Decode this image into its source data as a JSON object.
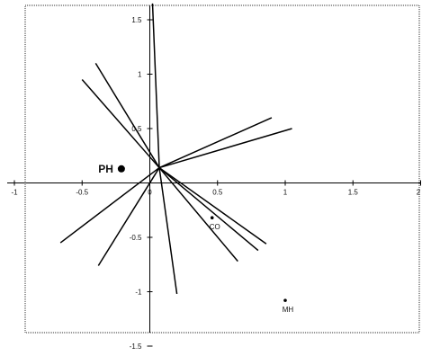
{
  "chart_data": {
    "type": "scatter",
    "title": "",
    "xlabel": "",
    "ylabel": "",
    "xlim": [
      -1,
      2
    ],
    "ylim": [
      -1.5,
      1.5
    ],
    "grid": false,
    "legend": "none",
    "colors": {
      "axis": "#000000",
      "frame": "#333333",
      "vectors": "#000000",
      "points": "#000000"
    },
    "x_ticks": [
      {
        "value": -1,
        "label": "-1"
      },
      {
        "value": -0.5,
        "label": "-0.5"
      },
      {
        "value": 0,
        "label": "0"
      },
      {
        "value": 0.5,
        "label": "0.5"
      },
      {
        "value": 1,
        "label": "1"
      },
      {
        "value": 1.5,
        "label": "1.5"
      },
      {
        "value": 2,
        "label": "2"
      }
    ],
    "y_ticks": [
      {
        "value": 1.5,
        "label": "1.5"
      },
      {
        "value": 1,
        "label": "1"
      },
      {
        "value": 0.5,
        "label": "0.5"
      },
      {
        "value": -0.5,
        "label": "-0.5"
      },
      {
        "value": -1,
        "label": "-1"
      },
      {
        "value": -1.5,
        "label": "-1.5"
      }
    ],
    "vector_origin": [
      0.07,
      0.14
    ],
    "vectors": [
      {
        "x": 0.02,
        "y": 1.65
      },
      {
        "x": -0.4,
        "y": 1.1
      },
      {
        "x": -0.5,
        "y": 0.95
      },
      {
        "x": 0.9,
        "y": 0.6
      },
      {
        "x": 1.05,
        "y": 0.5
      },
      {
        "x": -0.66,
        "y": -0.55
      },
      {
        "x": -0.38,
        "y": -0.76
      },
      {
        "x": 0.2,
        "y": -1.02
      },
      {
        "x": 0.65,
        "y": -0.72
      },
      {
        "x": 0.8,
        "y": -0.62
      },
      {
        "x": 0.86,
        "y": -0.56
      }
    ],
    "points": [
      {
        "label": "PH",
        "x": -0.21,
        "y": 0.13,
        "size": "large"
      },
      {
        "label": "CO",
        "x": 0.46,
        "y": -0.32,
        "size": "small"
      },
      {
        "label": "MH",
        "x": 1.0,
        "y": -1.08,
        "size": "small"
      }
    ]
  }
}
